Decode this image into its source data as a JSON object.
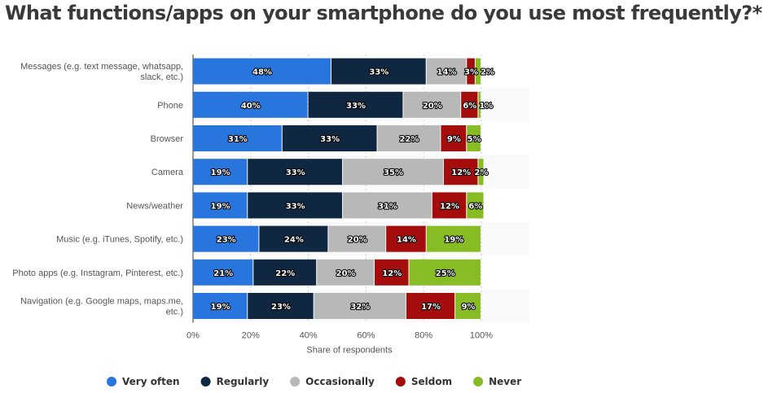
{
  "chart_data": {
    "type": "bar",
    "orientation": "horizontal",
    "stacked": true,
    "title": "What functions/apps on your smartphone do you use most frequently?*",
    "xlabel": "Share of respondents",
    "ylabel": "",
    "xlim": [
      0,
      100
    ],
    "x_ticks": [
      "0%",
      "20%",
      "40%",
      "60%",
      "80%",
      "100%"
    ],
    "grid": true,
    "legend_position": "bottom",
    "categories": [
      [
        "Messages (e.g. text message, whatsapp,",
        "slack, etc.)"
      ],
      [
        "Phone"
      ],
      [
        "Browser"
      ],
      [
        "Camera"
      ],
      [
        "News/weather"
      ],
      [
        "Music (e.g. iTunes, Spotify, etc.)"
      ],
      [
        "Photo apps (e.g. Instagram, Pinterest, etc.)"
      ],
      [
        "Navigation (e.g. Google maps, maps.me,",
        "etc.)"
      ]
    ],
    "series": [
      {
        "name": "Very often",
        "color": "#2876dd",
        "values": [
          48,
          40,
          31,
          19,
          19,
          23,
          21,
          19
        ]
      },
      {
        "name": "Regularly",
        "color": "#0f2741",
        "values": [
          33,
          33,
          33,
          33,
          33,
          24,
          22,
          23
        ]
      },
      {
        "name": "Occasionally",
        "color": "#b8b8b8",
        "values": [
          14,
          20,
          22,
          35,
          31,
          20,
          20,
          32
        ]
      },
      {
        "name": "Seldom",
        "color": "#a50d0d",
        "values": [
          3,
          6,
          9,
          12,
          12,
          14,
          12,
          17
        ]
      },
      {
        "name": "Never",
        "color": "#87bc24",
        "values": [
          2,
          1,
          5,
          2,
          6,
          19,
          25,
          9
        ]
      }
    ],
    "value_suffix": "%"
  }
}
